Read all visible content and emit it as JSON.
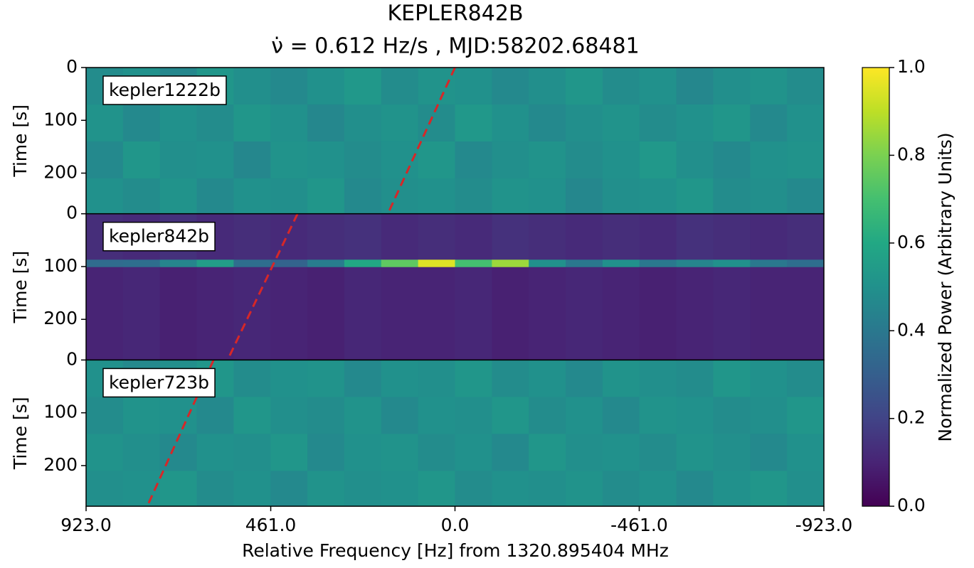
{
  "chart_data": {
    "type": "heatmap",
    "title": "KEPLER842B",
    "subtitle": "ν̇ = 0.612 Hz/s , MJD:58202.68481",
    "xlabel": "Relative Frequency [Hz] from 1320.895404 MHz",
    "ylabel": "Time [s]",
    "xlim": [
      923,
      -923
    ],
    "xticks": [
      {
        "value": 923,
        "label": "923.0"
      },
      {
        "value": 461,
        "label": "461.0"
      },
      {
        "value": 0,
        "label": "0.0"
      },
      {
        "value": -461,
        "label": "-461.0"
      },
      {
        "value": -923,
        "label": "-923.0"
      }
    ],
    "ylim": [
      0,
      277
    ],
    "yticks": [
      0,
      100,
      200
    ],
    "colormap": "viridis",
    "colorbar": {
      "label": "Normalized Power (Arbitrary Units)",
      "lim": [
        0,
        1
      ],
      "ticks": [
        {
          "value": 0,
          "label": "0.0"
        },
        0.2,
        0.4,
        0.6,
        0.8,
        {
          "value": 1,
          "label": "1.0"
        }
      ]
    },
    "drift_color": "#d62728",
    "freq_bins": [
      923,
      830.7,
      738.4,
      646.1,
      553.8,
      461.5,
      369.2,
      276.9,
      184.6,
      92.3,
      0,
      -92.3,
      -184.6,
      -276.9,
      -369.2,
      -461.5,
      -553.8,
      -646.1,
      -738.4,
      -830.7,
      -923
    ],
    "panels": [
      {
        "label": "kepler1222b",
        "time_bins": [
          0,
          70,
          140,
          210,
          277
        ],
        "drift": [
          0,
          168
        ],
        "power": [
          [
            0.48,
            0.5,
            0.46,
            0.52,
            0.49,
            0.47,
            0.5,
            0.53,
            0.48,
            0.51,
            0.5,
            0.47,
            0.49,
            0.52,
            0.48,
            0.5,
            0.46,
            0.49,
            0.51,
            0.48
          ],
          [
            0.51,
            0.47,
            0.5,
            0.48,
            0.52,
            0.5,
            0.46,
            0.49,
            0.51,
            0.48,
            0.53,
            0.5,
            0.47,
            0.49,
            0.51,
            0.48,
            0.5,
            0.52,
            0.47,
            0.5
          ],
          [
            0.47,
            0.52,
            0.49,
            0.5,
            0.46,
            0.51,
            0.5,
            0.48,
            0.5,
            0.52,
            0.47,
            0.49,
            0.51,
            0.48,
            0.5,
            0.53,
            0.49,
            0.47,
            0.5,
            0.51
          ],
          [
            0.5,
            0.48,
            0.51,
            0.47,
            0.5,
            0.49,
            0.52,
            0.47,
            0.49,
            0.5,
            0.48,
            0.51,
            0.5,
            0.46,
            0.49,
            0.5,
            0.52,
            0.48,
            0.49,
            0.47
          ]
        ]
      },
      {
        "label": "kepler842b",
        "time_bins": [
          0,
          87,
          101,
          277
        ],
        "drift": [
          394,
          569
        ],
        "power": [
          [
            0.13,
            0.12,
            0.14,
            0.12,
            0.13,
            0.12,
            0.13,
            0.14,
            0.12,
            0.13,
            0.12,
            0.14,
            0.13,
            0.12,
            0.13,
            0.12,
            0.14,
            0.13,
            0.12,
            0.13
          ],
          [
            0.35,
            0.36,
            0.45,
            0.55,
            0.36,
            0.32,
            0.42,
            0.6,
            0.75,
            0.95,
            0.7,
            0.85,
            0.5,
            0.4,
            0.5,
            0.4,
            0.45,
            0.5,
            0.4,
            0.36
          ],
          [
            0.1,
            0.11,
            0.09,
            0.1,
            0.11,
            0.1,
            0.09,
            0.11,
            0.1,
            0.1,
            0.11,
            0.09,
            0.1,
            0.11,
            0.1,
            0.09,
            0.1,
            0.11,
            0.1,
            0.1
          ]
        ]
      },
      {
        "label": "kepler723b",
        "time_bins": [
          0,
          70,
          140,
          210,
          277
        ],
        "drift": [
          604,
          770
        ],
        "power": [
          [
            0.5,
            0.47,
            0.49,
            0.52,
            0.48,
            0.5,
            0.51,
            0.47,
            0.5,
            0.49,
            0.52,
            0.48,
            0.5,
            0.47,
            0.51,
            0.49,
            0.48,
            0.52,
            0.5,
            0.48
          ],
          [
            0.48,
            0.51,
            0.5,
            0.47,
            0.52,
            0.49,
            0.48,
            0.51,
            0.47,
            0.5,
            0.49,
            0.52,
            0.48,
            0.5,
            0.47,
            0.51,
            0.5,
            0.48,
            0.49,
            0.52
          ],
          [
            0.51,
            0.49,
            0.47,
            0.5,
            0.49,
            0.52,
            0.47,
            0.5,
            0.51,
            0.48,
            0.5,
            0.47,
            0.52,
            0.49,
            0.5,
            0.48,
            0.51,
            0.49,
            0.47,
            0.5
          ],
          [
            0.49,
            0.5,
            0.52,
            0.48,
            0.5,
            0.47,
            0.51,
            0.49,
            0.5,
            0.52,
            0.48,
            0.5,
            0.49,
            0.51,
            0.48,
            0.5,
            0.47,
            0.5,
            0.52,
            0.49
          ]
        ]
      }
    ]
  }
}
